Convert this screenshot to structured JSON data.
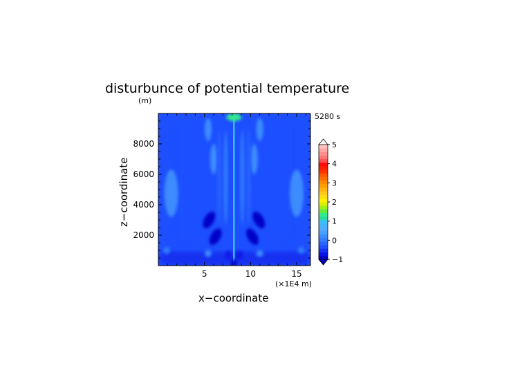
{
  "chart_data": {
    "type": "heatmap",
    "title": "disturbunce of potential temperature",
    "ylabel": "z−coordinate",
    "y_unit": "(m)",
    "xlabel": "x−coordinate",
    "x_unit": "(×1E4 m)",
    "time_label": "5280 s",
    "xlim": [
      0,
      16.5
    ],
    "ylim": [
      0,
      10000
    ],
    "x_ticks": [
      5,
      10,
      15
    ],
    "x_tick_labels": [
      "5",
      "10",
      "15"
    ],
    "y_ticks": [
      2000,
      4000,
      6000,
      8000
    ],
    "y_tick_labels": [
      "2000",
      "4000",
      "6000",
      "8000"
    ],
    "colorbar": {
      "min": -1,
      "max": 5,
      "step": 0.25,
      "ticks": [
        -1,
        0,
        1,
        2,
        3,
        4,
        5
      ],
      "tick_labels": [
        "−1",
        "0",
        "1",
        "2",
        "3",
        "4",
        "5"
      ],
      "colors": [
        "#0000c8",
        "#0a14e6",
        "#1432f0",
        "#1e50ff",
        "#2864ff",
        "#327dff",
        "#3c8cff",
        "#46a0ff",
        "#50aaff",
        "#46b4ff",
        "#3cbeff",
        "#28dca0",
        "#32eb8c",
        "#64eb3c",
        "#a0f01e",
        "#dcf000",
        "#fff000",
        "#ffdc14",
        "#ffc814",
        "#ffb414",
        "#ffa000",
        "#ff8c00",
        "#ff6e00",
        "#ff5a00",
        "#ff3200",
        "#ff1e00",
        "#ff0a0a",
        "#ff5050",
        "#ff7878",
        "#ff9090",
        "#ffa8a8",
        "#ffc0c0"
      ],
      "over_color": "#ffffff",
      "under_color": "#0000b4"
    },
    "field": {
      "background_value": -0.15,
      "symmetric_about_x": 8.2,
      "features": [
        {
          "kind": "column",
          "x_offset": 0.0,
          "z": [
            0,
            9800
          ],
          "value": 1.5
        },
        {
          "kind": "top_cap",
          "x_offset": 0.0,
          "z": [
            9500,
            10000
          ],
          "value": 2.2
        },
        {
          "kind": "cool_lobe",
          "x_offset": 2.7,
          "z": [
            2400,
            3600
          ],
          "value": -0.9
        },
        {
          "kind": "cool_lobe",
          "x_offset": 2.0,
          "z": [
            1300,
            2500
          ],
          "value": -0.8
        },
        {
          "kind": "warm_lobe",
          "x_offset": 6.8,
          "z": [
            3200,
            6300
          ],
          "value": 0.7
        },
        {
          "kind": "warm_streak",
          "x_offset": 2.2,
          "z": [
            6000,
            8000
          ],
          "value": 0.6
        },
        {
          "kind": "warm_streak",
          "x_offset": 2.8,
          "z": [
            8200,
            9700
          ],
          "value": 0.5
        }
      ]
    }
  }
}
